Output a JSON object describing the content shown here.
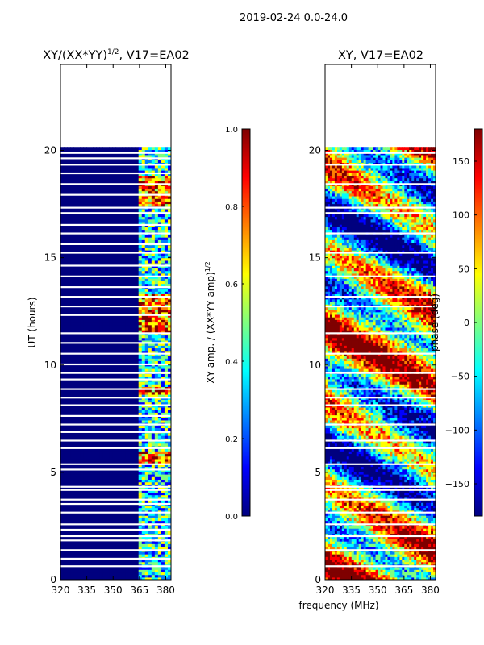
{
  "suptitle": "2019-02-24 0.0-24.0",
  "colormap": [
    "#00007f",
    "#0000ff",
    "#007fff",
    "#00ffff",
    "#7fff7f",
    "#ffff00",
    "#ff7f00",
    "#ff0000",
    "#7f0000"
  ],
  "shared": {
    "xlabel": "frequency (MHz)"
  },
  "chart_data": [
    {
      "type": "heatmap",
      "title_main": "XY/(XX*YY)",
      "title_sup": "1/2",
      "title_tail": ", V17=EA02",
      "ylabel": "UT (hours)",
      "xlim": [
        320,
        383
      ],
      "ylim": [
        0,
        24
      ],
      "xticks": [
        320,
        335,
        350,
        365,
        380
      ],
      "yticks": [
        0,
        5,
        10,
        15,
        20
      ],
      "data_extent_hours": [
        0,
        20.1
      ],
      "band_edge_mhz": 364,
      "colorbar": {
        "label_main": "XY amp. / (XX*YY amp)",
        "label_sup": "1/2",
        "range": [
          0.0,
          1.0
        ],
        "ticks": [
          "0.0",
          "0.2",
          "0.4",
          "0.6",
          "0.8",
          "1.0"
        ],
        "tick_values": [
          0.0,
          0.2,
          0.4,
          0.6,
          0.8,
          1.0
        ]
      },
      "gaps_hours": [
        0.6,
        0.95,
        1.35,
        1.8,
        2.0,
        2.3,
        2.55,
        3.1,
        3.5,
        3.7,
        4.15,
        4.3,
        5.1,
        5.35,
        6.1,
        6.45,
        6.85,
        7.2,
        7.6,
        8.1,
        8.45,
        8.85,
        9.3,
        9.6,
        10.0,
        10.5,
        11.0,
        11.45,
        12.3,
        12.7,
        13.15,
        13.6,
        14.1,
        14.6,
        15.2,
        15.6,
        16.1,
        16.5,
        17.05,
        17.3,
        17.9,
        18.4,
        18.9,
        19.3,
        19.6,
        19.85
      ]
    },
    {
      "type": "heatmap",
      "title_main": "XY, V17=EA02",
      "xlim": [
        320,
        383
      ],
      "ylim": [
        0,
        24
      ],
      "xticks": [
        320,
        335,
        350,
        365,
        380
      ],
      "yticks": [
        0,
        5,
        10,
        15,
        20
      ],
      "data_extent_hours": [
        0,
        20.1
      ],
      "colorbar": {
        "label": "phase (deg)",
        "range": [
          -180,
          180
        ],
        "ticks": [
          "−150",
          "−100",
          "−50",
          "0",
          "50",
          "100",
          "150"
        ],
        "tick_values": [
          -150,
          -100,
          -50,
          0,
          50,
          100,
          150
        ]
      },
      "gaps_hours": [
        0.6,
        1.35,
        2.0,
        2.55,
        3.1,
        3.7,
        4.15,
        4.3,
        5.35,
        6.1,
        6.45,
        7.2,
        8.1,
        8.45,
        8.85,
        9.6,
        10.5,
        11.45,
        12.7,
        13.15,
        14.1,
        15.2,
        16.1,
        17.05,
        17.3,
        18.4,
        19.3,
        19.85
      ]
    }
  ]
}
